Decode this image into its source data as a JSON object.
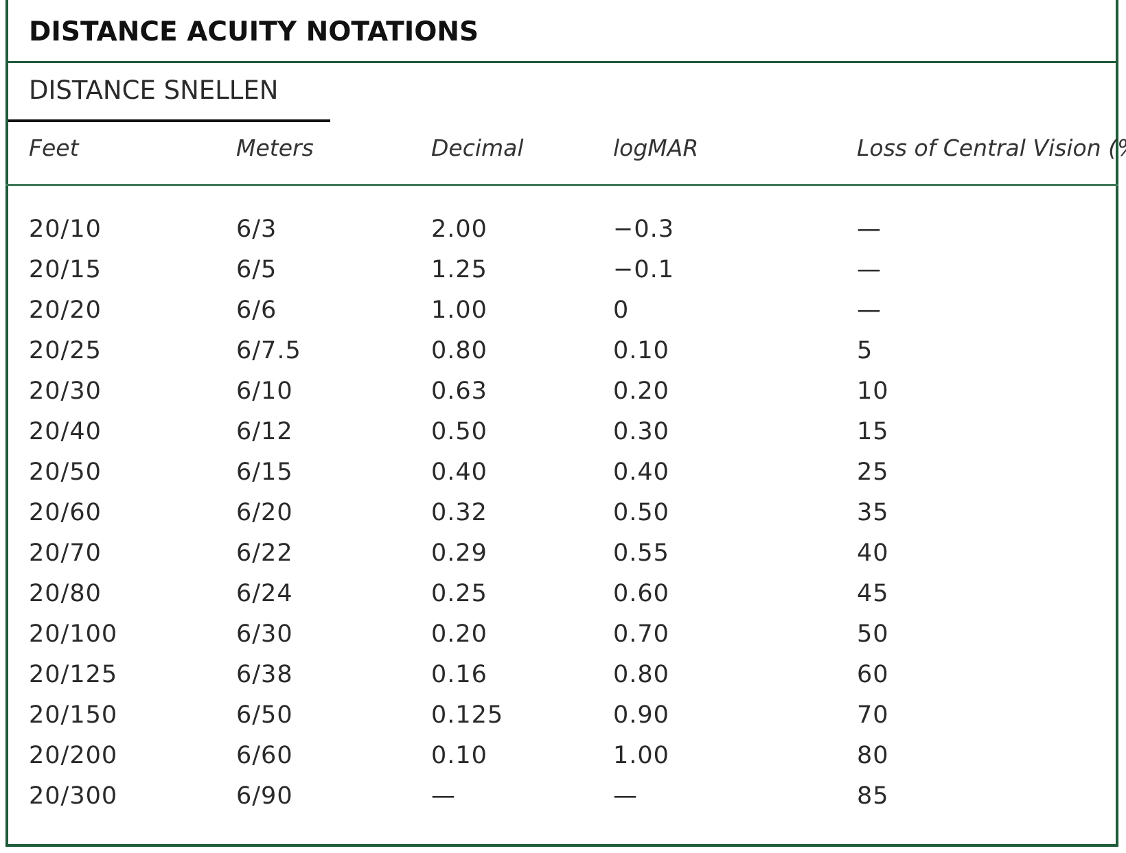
{
  "title": "DISTANCE ACUITY NOTATIONS",
  "subtitle": "DISTANCE SNELLEN",
  "columns": [
    "Feet",
    "Meters",
    "Decimal",
    "logMAR",
    "Loss of Central Vision (%)"
  ],
  "rows": [
    [
      "20/10",
      "6/3",
      "2.00",
      "−0.3",
      "—"
    ],
    [
      "20/15",
      "6/5",
      "1.25",
      "−0.1",
      "—"
    ],
    [
      "20/20",
      "6/6",
      "1.00",
      "0",
      "—"
    ],
    [
      "20/25",
      "6/7.5",
      "0.80",
      "0.10",
      "5"
    ],
    [
      "20/30",
      "6/10",
      "0.63",
      "0.20",
      "10"
    ],
    [
      "20/40",
      "6/12",
      "0.50",
      "0.30",
      "15"
    ],
    [
      "20/50",
      "6/15",
      "0.40",
      "0.40",
      "25"
    ],
    [
      "20/60",
      "6/20",
      "0.32",
      "0.50",
      "35"
    ],
    [
      "20/70",
      "6/22",
      "0.29",
      "0.55",
      "40"
    ],
    [
      "20/80",
      "6/24",
      "0.25",
      "0.60",
      "45"
    ],
    [
      "20/100",
      "6/30",
      "0.20",
      "0.70",
      "50"
    ],
    [
      "20/125",
      "6/38",
      "0.16",
      "0.80",
      "60"
    ],
    [
      "20/150",
      "6/50",
      "0.125",
      "0.90",
      "70"
    ],
    [
      "20/200",
      "6/60",
      "0.10",
      "1.00",
      "80"
    ],
    [
      "20/300",
      "6/90",
      "—",
      "—",
      "85"
    ]
  ],
  "colors": {
    "frame": "#1f5a3a",
    "text": "#2a2a2a"
  }
}
